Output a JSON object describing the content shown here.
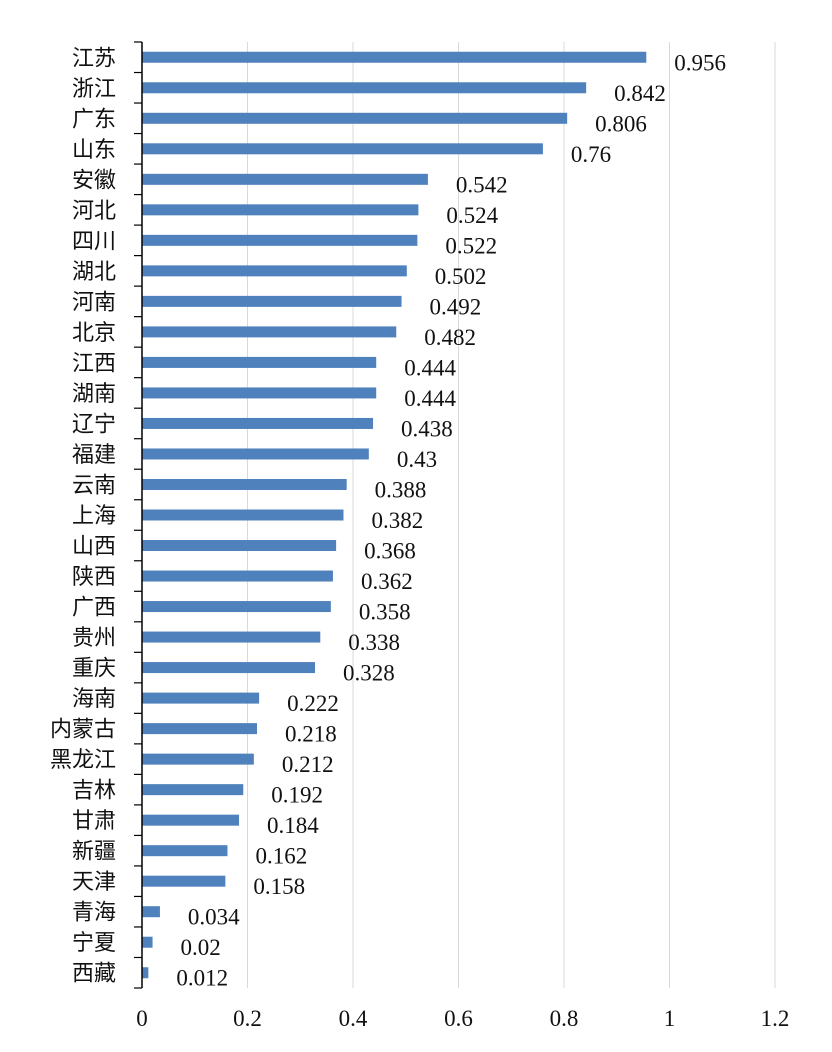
{
  "chart_data": {
    "type": "bar",
    "orientation": "horizontal",
    "categories": [
      "江苏",
      "浙江",
      "广东",
      "山东",
      "安徽",
      "河北",
      "四川",
      "湖北",
      "河南",
      "北京",
      "江西",
      "湖南",
      "辽宁",
      "福建",
      "云南",
      "上海",
      "山西",
      "陕西",
      "广西",
      "贵州",
      "重庆",
      "海南",
      "内蒙古",
      "黑龙江",
      "吉林",
      "甘肃",
      "新疆",
      "天津",
      "青海",
      "宁夏",
      "西藏"
    ],
    "values": [
      0.956,
      0.842,
      0.806,
      0.76,
      0.542,
      0.524,
      0.522,
      0.502,
      0.492,
      0.482,
      0.444,
      0.444,
      0.438,
      0.43,
      0.388,
      0.382,
      0.368,
      0.362,
      0.358,
      0.338,
      0.328,
      0.222,
      0.218,
      0.212,
      0.192,
      0.184,
      0.162,
      0.158,
      0.034,
      0.02,
      0.012
    ],
    "value_labels": [
      "0.956",
      "0.842",
      "0.806",
      "0.76",
      "0.542",
      "0.524",
      "0.522",
      "0.502",
      "0.492",
      "0.482",
      "0.444",
      "0.444",
      "0.438",
      "0.43",
      "0.388",
      "0.382",
      "0.368",
      "0.362",
      "0.358",
      "0.338",
      "0.328",
      "0.222",
      "0.218",
      "0.212",
      "0.192",
      "0.184",
      "0.162",
      "0.158",
      "0.034",
      "0.02",
      "0.012"
    ],
    "xlim": [
      0,
      1.2
    ],
    "xticks": [
      "0",
      "0.2",
      "0.4",
      "0.6",
      "0.8",
      "1",
      "1.2"
    ],
    "grid": "vertical",
    "bar_color": "#4f81bd",
    "title": "",
    "xlabel": "",
    "ylabel": ""
  }
}
